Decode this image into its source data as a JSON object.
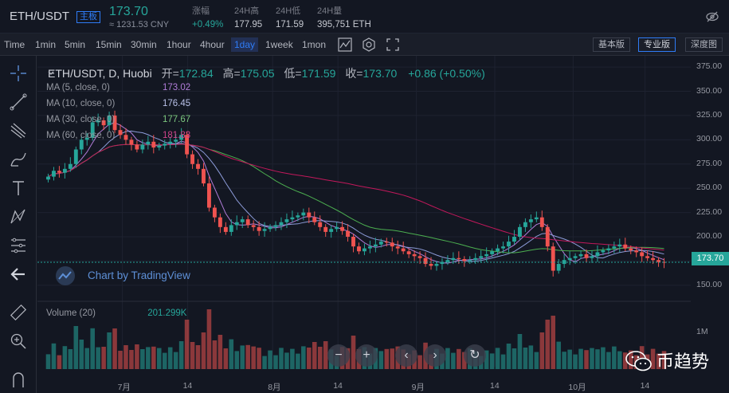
{
  "header": {
    "pair": "ETH/USDT",
    "board_badge": "主板",
    "price": "173.70",
    "cny": "≈ 1231.53 CNY",
    "stats": [
      {
        "label": "涨幅",
        "value": "+0.49%",
        "up": true
      },
      {
        "label": "24H高",
        "value": "177.95",
        "up": false
      },
      {
        "label": "24H低",
        "value": "171.59",
        "up": false
      },
      {
        "label": "24H量",
        "value": "395,751 ETH",
        "up": false
      }
    ],
    "hide_icon": "eye-off-icon"
  },
  "toolbar": {
    "intervals": [
      "Time",
      "1min",
      "5min",
      "15min",
      "30min",
      "1hour",
      "4hour",
      "1day",
      "1week",
      "1mon"
    ],
    "active_interval": "1day",
    "icons": [
      "indicators-icon",
      "settings-icon",
      "fullscreen-icon"
    ],
    "versions": [
      "基本版",
      "专业版",
      "深度图"
    ],
    "active_version": "专业版"
  },
  "tools": [
    "crosshair-icon",
    "trendline-icon",
    "pitchfork-icon",
    "brush-icon",
    "text-icon",
    "pattern-icon",
    "fib-icon",
    "back-icon",
    "ruler-icon",
    "zoom-icon",
    "magnet-icon"
  ],
  "legend": {
    "symbol": "ETH/USDT, D, Huobi",
    "open_label": "开=",
    "open": "172.84",
    "high_label": "高=",
    "high": "175.05",
    "low_label": "低=",
    "low": "171.59",
    "close_label": "收=",
    "close": "173.70",
    "change": "+0.86 (+0.50%)"
  },
  "mas": [
    {
      "label": "MA (5, close, 0)",
      "value": "173.02",
      "color": "#b07cd8"
    },
    {
      "label": "MA (10, close, 0)",
      "value": "176.45",
      "color": "#8c9bd8"
    },
    {
      "label": "MA (30, close, 0)",
      "value": "177.67",
      "color": "#4caf50"
    },
    {
      "label": "MA (60, close, 0)",
      "value": "181.83",
      "color": "#c2185b"
    }
  ],
  "watermark_tv": "Chart by TradingView",
  "volume": {
    "label": "Volume (20)",
    "value": "201.299K"
  },
  "price_axis": [
    "375.00",
    "350.00",
    "325.00",
    "300.00",
    "275.00",
    "250.00",
    "225.00",
    "200.00",
    "175.00",
    "150.00"
  ],
  "current_price_tag": "173.70",
  "volume_axis": [
    "1M"
  ],
  "time_axis": [
    "7月",
    "14",
    "8月",
    "14",
    "9月",
    "14",
    "10月",
    "14"
  ],
  "nav_buttons": [
    "−",
    "+",
    "‹",
    "›",
    "↻"
  ],
  "brand_watermark": "币趋势",
  "colors": {
    "up": "#26a69a",
    "down": "#ef5350",
    "bg": "#131722",
    "accent": "#2f7cf6"
  },
  "chart_data": {
    "type": "candlestick",
    "ylim": [
      140,
      380
    ],
    "closes": [
      262,
      268,
      266,
      270,
      275,
      290,
      300,
      302,
      318,
      320,
      315,
      325,
      310,
      305,
      300,
      295,
      290,
      295,
      298,
      292,
      294,
      296,
      298,
      300,
      305,
      285,
      275,
      270,
      255,
      230,
      220,
      210,
      205,
      212,
      215,
      218,
      212,
      210,
      206,
      208,
      210,
      212,
      215,
      218,
      220,
      222,
      225,
      220,
      215,
      210,
      205,
      208,
      210,
      206,
      200,
      190,
      185,
      188,
      190,
      192,
      195,
      194,
      190,
      188,
      185,
      182,
      180,
      178,
      172,
      170,
      172,
      174,
      176,
      178,
      177,
      175,
      176,
      178,
      180,
      182,
      185,
      188,
      190,
      195,
      200,
      210,
      215,
      218,
      220,
      210,
      190,
      165,
      172,
      176,
      178,
      180,
      182,
      178,
      180,
      184,
      186,
      188,
      190,
      192,
      188,
      186,
      184,
      180,
      178,
      176,
      174,
      173.7
    ]
  }
}
